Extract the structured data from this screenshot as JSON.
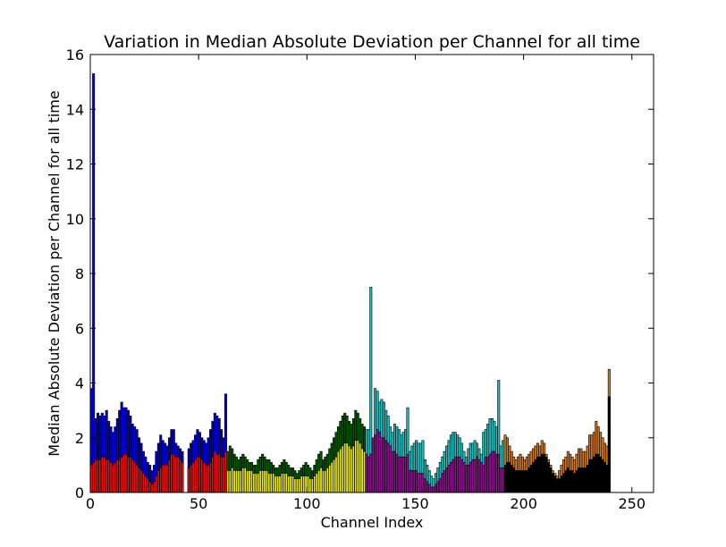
{
  "chart_data": {
    "type": "bar",
    "title": "Variation in Median Absolute Deviation per Channel for all time",
    "xlabel": "Channel Index",
    "ylabel": "Median Absolute Deviation per Channel for all time",
    "xlim": [
      0,
      260
    ],
    "ylim": [
      0,
      16
    ],
    "x_ticks": [
      0,
      50,
      100,
      150,
      200,
      250
    ],
    "y_ticks": [
      0,
      2,
      4,
      6,
      8,
      10,
      12,
      14,
      16
    ],
    "grid": false,
    "legend": "none",
    "note_channels": "bars drawn for channels 1-255, excluding 44 and 45; each channel has an outer (blue-family) bar and an overlaid inner bar",
    "groups": [
      {
        "channels": [
          1,
          43
        ],
        "outer_color": "#0000cc",
        "inner_color": "#dd1111"
      },
      {
        "channels": [
          46,
          63
        ],
        "outer_color": "#0000cc",
        "inner_color": "#dd1111"
      },
      {
        "channels": [
          64,
          127
        ],
        "outer_color": "#005500",
        "inner_color": "#e6e61a"
      },
      {
        "channels": [
          128,
          191
        ],
        "outer_color": "#22bbbb",
        "inner_color": "#881188"
      },
      {
        "channels": [
          192,
          255
        ],
        "outer_color": "#cc7722",
        "inner_color": "#000000"
      }
    ],
    "series": [
      {
        "name": "outer",
        "values": [
          3.8,
          15.3,
          2.7,
          2.9,
          2.8,
          2.9,
          2.8,
          3.0,
          2.6,
          2.4,
          2.2,
          2.4,
          2.7,
          3.0,
          3.3,
          3.1,
          3.1,
          3.0,
          2.8,
          2.5,
          2.4,
          2.3,
          2.0,
          1.8,
          1.5,
          1.3,
          1.1,
          1.0,
          0.8,
          1.0,
          1.5,
          1.8,
          2.1,
          1.9,
          1.8,
          1.7,
          2.0,
          2.3,
          2.3,
          1.8,
          1.7,
          1.6,
          1.5,
          0,
          0,
          1.6,
          1.8,
          1.9,
          2.1,
          2.3,
          2.2,
          2.0,
          1.9,
          1.8,
          2.0,
          2.3,
          2.6,
          2.9,
          2.8,
          2.7,
          2.3,
          2.0,
          3.6,
          1.5,
          1.7,
          1.6,
          1.4,
          1.3,
          1.2,
          1.3,
          1.4,
          1.3,
          1.2,
          1.1,
          1.1,
          1.0,
          1.0,
          1.2,
          1.3,
          1.4,
          1.3,
          1.2,
          1.2,
          1.1,
          1.0,
          0.9,
          0.9,
          1.0,
          1.1,
          1.2,
          1.1,
          1.0,
          0.9,
          0.9,
          0.8,
          0.7,
          0.8,
          0.9,
          1.0,
          1.1,
          1.0,
          0.9,
          0.8,
          1.0,
          1.2,
          1.4,
          1.5,
          1.2,
          1.3,
          1.4,
          1.6,
          1.8,
          2.0,
          2.2,
          2.4,
          2.6,
          2.8,
          2.9,
          2.8,
          2.6,
          2.5,
          2.7,
          3.0,
          2.9,
          2.7,
          2.5,
          2.4,
          2.3,
          2.3,
          7.5,
          1.9,
          3.8,
          3.7,
          3.3,
          3.4,
          3.3,
          3.0,
          2.8,
          2.4,
          2.2,
          2.5,
          2.4,
          2.3,
          2.1,
          2.2,
          2.3,
          3.1,
          1.5,
          1.7,
          1.8,
          1.9,
          1.8,
          1.8,
          1.9,
          1.2,
          1.0,
          0.8,
          0.6,
          0.5,
          0.7,
          0.9,
          1.1,
          1.3,
          1.5,
          1.7,
          1.9,
          2.1,
          2.2,
          2.2,
          2.1,
          2.0,
          1.8,
          1.5,
          1.3,
          1.6,
          1.8,
          1.8,
          1.9,
          1.8,
          1.6,
          1.4,
          2.2,
          2.3,
          2.5,
          2.7,
          2.7,
          2.6,
          2.4,
          4.1,
          1.7,
          1.9,
          2.1,
          2.0,
          1.7,
          1.5,
          1.3,
          1.2,
          1.3,
          1.4,
          1.3,
          1.2,
          1.3,
          1.4,
          1.5,
          1.6,
          1.7,
          1.8,
          1.7,
          1.9,
          1.8,
          1.4,
          1.2,
          1.0,
          0.8,
          0.7,
          0.6,
          0.8,
          1.0,
          1.2,
          1.3,
          1.5,
          1.4,
          1.3,
          1.2,
          1.4,
          1.6,
          1.6,
          1.5,
          1.5,
          1.7,
          2.1,
          2.1,
          2.2,
          2.6,
          2.4,
          2.2,
          2.0,
          1.8,
          1.7,
          4.5
        ]
      },
      {
        "name": "inner",
        "values": [
          1.0,
          1.1,
          1.2,
          1.2,
          1.2,
          1.3,
          1.3,
          1.2,
          1.2,
          1.1,
          1.0,
          1.1,
          1.2,
          1.2,
          1.3,
          1.4,
          1.4,
          1.3,
          1.3,
          1.2,
          1.1,
          1.0,
          0.9,
          0.8,
          0.7,
          0.6,
          0.5,
          0.4,
          0.3,
          0.4,
          0.6,
          0.8,
          0.9,
          1.0,
          1.0,
          1.0,
          1.2,
          1.4,
          1.4,
          1.3,
          1.3,
          1.2,
          1.1,
          0,
          0,
          0.9,
          1.0,
          1.1,
          1.2,
          1.3,
          1.3,
          1.2,
          1.1,
          1.0,
          1.0,
          1.1,
          1.3,
          1.5,
          1.4,
          1.4,
          1.3,
          1.3,
          1.5,
          0.8,
          0.8,
          0.9,
          0.8,
          0.8,
          0.8,
          0.8,
          0.9,
          0.9,
          0.8,
          0.8,
          0.8,
          0.7,
          0.7,
          0.7,
          0.8,
          0.8,
          0.8,
          0.8,
          0.7,
          0.7,
          0.7,
          0.6,
          0.6,
          0.6,
          0.7,
          0.7,
          0.7,
          0.6,
          0.6,
          0.6,
          0.5,
          0.5,
          0.5,
          0.6,
          0.6,
          0.6,
          0.6,
          0.5,
          0.5,
          0.6,
          0.7,
          0.8,
          0.9,
          0.8,
          0.8,
          0.9,
          1.0,
          1.1,
          1.2,
          1.3,
          1.5,
          1.6,
          1.7,
          1.8,
          1.8,
          1.7,
          1.6,
          1.7,
          1.9,
          1.9,
          1.8,
          1.6,
          1.5,
          1.4,
          1.3,
          1.4,
          2.0,
          2.1,
          2.3,
          2.2,
          2.0,
          2.0,
          1.9,
          1.8,
          1.7,
          1.5,
          1.5,
          1.4,
          1.3,
          1.3,
          1.3,
          1.3,
          1.4,
          0.8,
          0.8,
          0.8,
          0.8,
          0.7,
          0.7,
          0.7,
          0.5,
          0.4,
          0.3,
          0.2,
          0.2,
          0.3,
          0.4,
          0.5,
          0.7,
          0.8,
          0.9,
          1.0,
          1.1,
          1.2,
          1.3,
          1.3,
          1.3,
          1.2,
          1.1,
          1.0,
          1.0,
          1.1,
          1.2,
          1.2,
          1.3,
          1.2,
          1.1,
          1.0,
          1.3,
          1.3,
          1.4,
          1.5,
          1.5,
          1.4,
          1.4,
          0.9,
          0.9,
          1.0,
          1.1,
          1.1,
          1.0,
          0.9,
          0.8,
          0.8,
          0.8,
          0.8,
          0.8,
          0.8,
          0.9,
          1.0,
          1.1,
          1.2,
          1.3,
          1.3,
          1.4,
          1.4,
          1.3,
          1.1,
          0.9,
          0.7,
          0.6,
          0.5,
          0.5,
          0.6,
          0.7,
          0.8,
          0.9,
          0.8,
          0.8,
          0.7,
          0.8,
          0.9,
          0.9,
          0.9,
          0.9,
          1.0,
          1.2,
          1.2,
          1.3,
          1.4,
          1.4,
          1.3,
          1.2,
          1.1,
          1.0,
          3.5
        ]
      }
    ]
  }
}
